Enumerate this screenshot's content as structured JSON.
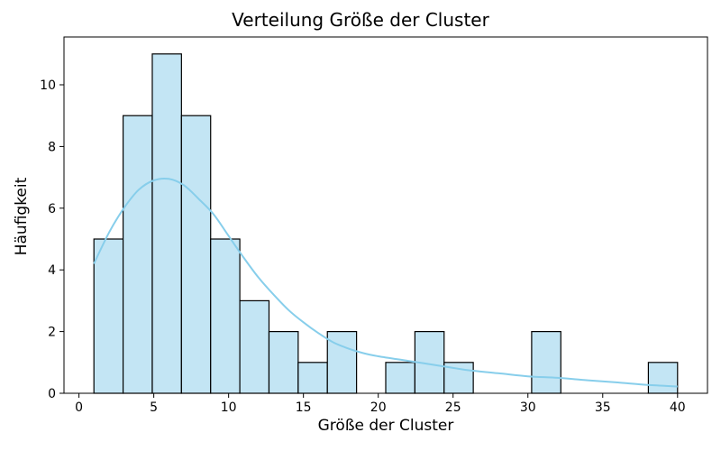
{
  "chart_data": {
    "type": "bar",
    "title": "Verteilung Größe der Cluster",
    "xlabel": "Größe der Cluster",
    "ylabel": "Häufigkeit",
    "xlim": [
      -1,
      42
    ],
    "ylim": [
      0,
      11.55
    ],
    "xticks": [
      0,
      5,
      10,
      15,
      20,
      25,
      30,
      35,
      40
    ],
    "yticks": [
      0,
      2,
      4,
      6,
      8,
      10
    ],
    "bins": [
      {
        "start": 1.0,
        "end": 2.95,
        "count": 5
      },
      {
        "start": 2.95,
        "end": 4.9,
        "count": 9
      },
      {
        "start": 4.9,
        "end": 6.85,
        "count": 11
      },
      {
        "start": 6.85,
        "end": 8.8,
        "count": 9
      },
      {
        "start": 8.8,
        "end": 10.75,
        "count": 5
      },
      {
        "start": 10.75,
        "end": 12.7,
        "count": 3
      },
      {
        "start": 12.7,
        "end": 14.65,
        "count": 2
      },
      {
        "start": 14.65,
        "end": 16.6,
        "count": 1
      },
      {
        "start": 16.6,
        "end": 18.55,
        "count": 2
      },
      {
        "start": 18.55,
        "end": 20.5,
        "count": 0
      },
      {
        "start": 20.5,
        "end": 22.45,
        "count": 1
      },
      {
        "start": 22.45,
        "end": 24.4,
        "count": 2
      },
      {
        "start": 24.4,
        "end": 26.35,
        "count": 1
      },
      {
        "start": 26.35,
        "end": 28.3,
        "count": 0
      },
      {
        "start": 28.3,
        "end": 30.25,
        "count": 0
      },
      {
        "start": 30.25,
        "end": 32.2,
        "count": 2
      },
      {
        "start": 32.2,
        "end": 34.15,
        "count": 0
      },
      {
        "start": 34.15,
        "end": 36.1,
        "count": 0
      },
      {
        "start": 36.1,
        "end": 38.05,
        "count": 0
      },
      {
        "start": 38.05,
        "end": 40.0,
        "count": 1
      }
    ],
    "kde": {
      "x": [
        1,
        2,
        3,
        4,
        5,
        6,
        7,
        8,
        9,
        10,
        11,
        12,
        13,
        14,
        15,
        16,
        17,
        18,
        19,
        20,
        22,
        24,
        26,
        28,
        30,
        32,
        34,
        36,
        38,
        40
      ],
      "y": [
        4.2,
        5.2,
        6.0,
        6.6,
        6.9,
        6.95,
        6.75,
        6.3,
        5.8,
        5.1,
        4.4,
        3.75,
        3.2,
        2.7,
        2.3,
        1.95,
        1.65,
        1.45,
        1.3,
        1.2,
        1.05,
        0.9,
        0.75,
        0.65,
        0.55,
        0.5,
        0.42,
        0.35,
        0.27,
        0.22
      ]
    },
    "colors": {
      "bar_fill": "#c3e5f4",
      "bar_edge": "#000000",
      "kde_line": "#87ceeb"
    },
    "grid": false,
    "legend": "none"
  }
}
